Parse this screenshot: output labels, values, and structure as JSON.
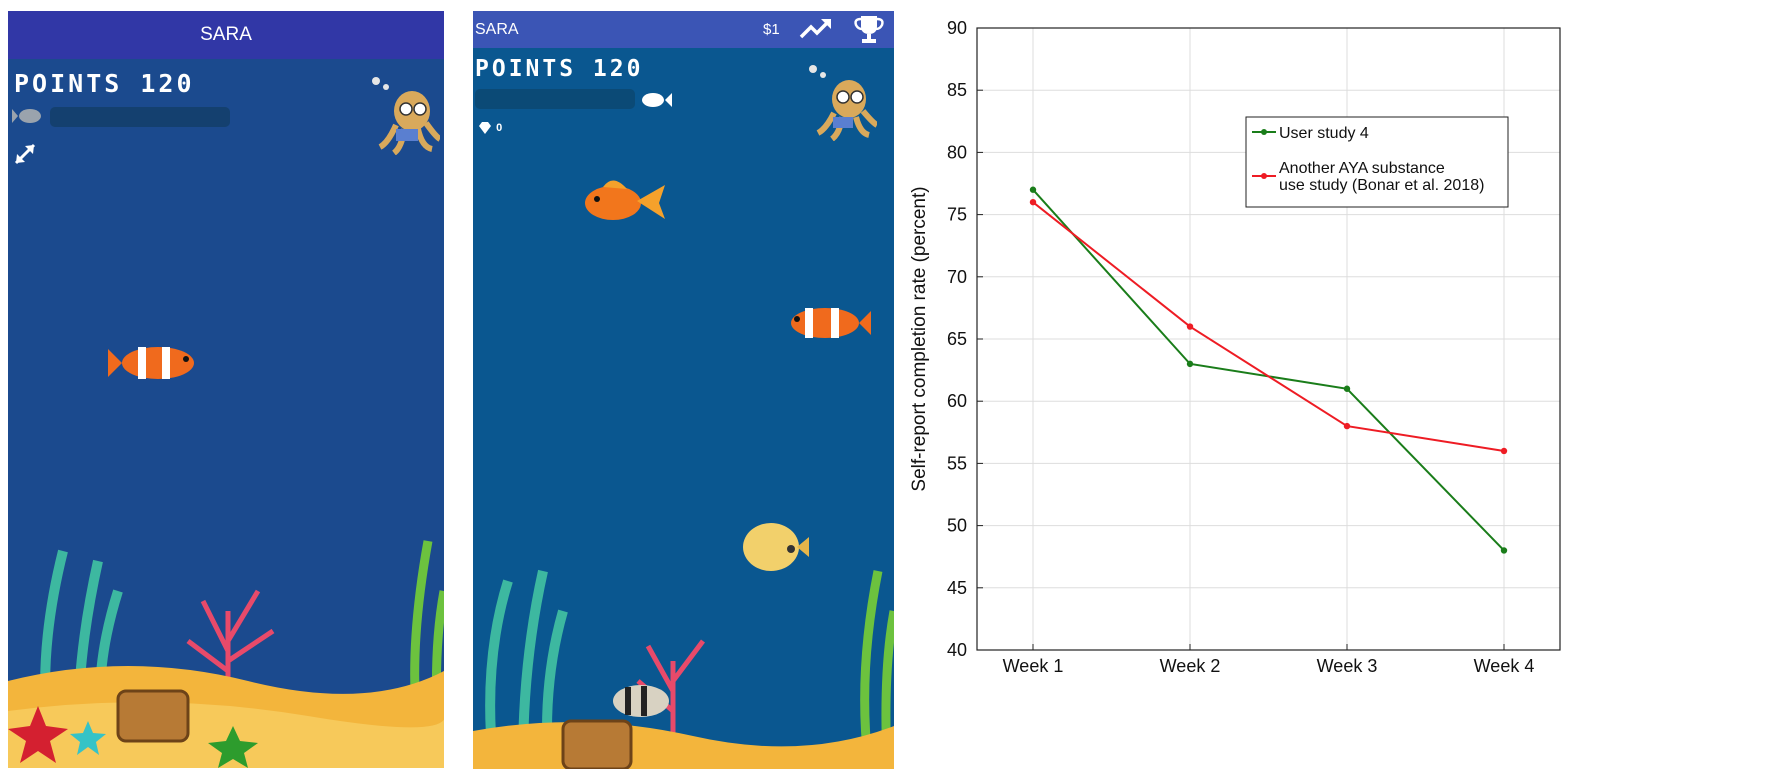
{
  "screens": [
    {
      "app_title": "SARA",
      "points_label": "POINTS 120"
    },
    {
      "app_title": "SARA",
      "money": "$1",
      "points_label": "POINTS 120",
      "gems": "0"
    }
  ],
  "colors": {
    "appbar1": "#3137a6",
    "appbar2": "#3b55b5",
    "ocean1": "#1b4a8e",
    "ocean2": "#0a5790"
  },
  "chart_data": {
    "type": "line",
    "categories": [
      "Week 1",
      "Week 2",
      "Week 3",
      "Week 4"
    ],
    "series": [
      {
        "name": "User study 4",
        "color": "#1a7d1a",
        "values": [
          77,
          63,
          61,
          48
        ]
      },
      {
        "name": "Another AYA substance use study (Bonar et al. 2018)",
        "name_lines": [
          "Another AYA substance",
          "use study (Bonar et al. 2018)"
        ],
        "color": "#ee1c24",
        "values": [
          76,
          66,
          58,
          56
        ]
      }
    ],
    "title": "",
    "xlabel": "",
    "ylabel": "Self-report completion rate (percent)",
    "ylim": [
      40,
      90
    ],
    "yticks": [
      40,
      45,
      50,
      55,
      60,
      65,
      70,
      75,
      80,
      85,
      90
    ],
    "grid": true,
    "legend": "top-right"
  }
}
